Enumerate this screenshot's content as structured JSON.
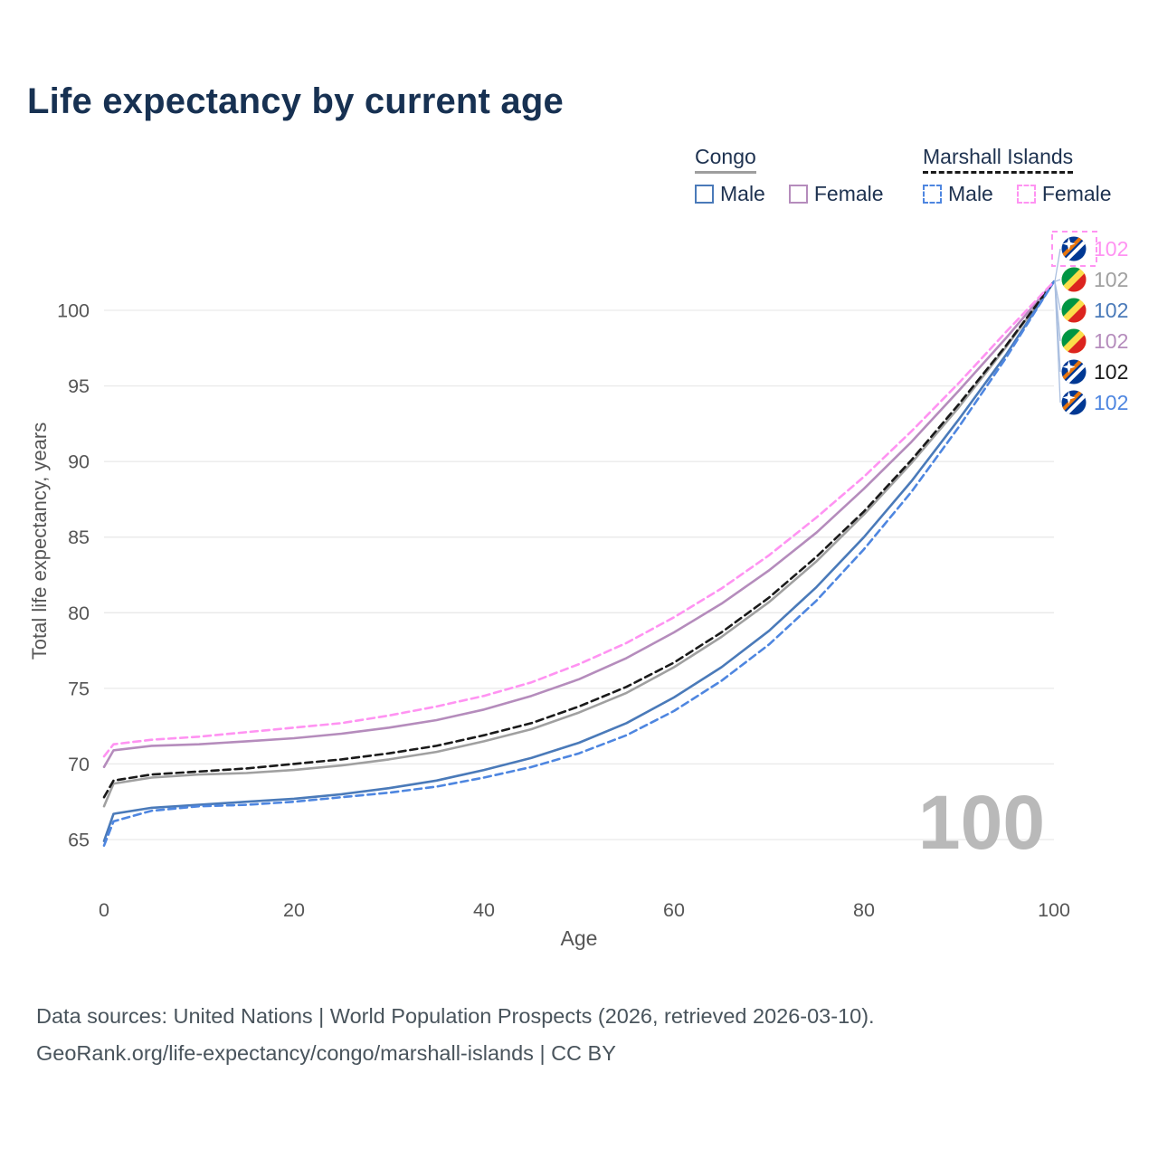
{
  "title": "Life expectancy by current age",
  "legend": {
    "groups": [
      {
        "name": "Congo",
        "underline": {
          "color": "#9e9e9e",
          "style": "solid"
        },
        "items": [
          {
            "label": "Male",
            "color": "#4a7ab9",
            "dash": false
          },
          {
            "label": "Female",
            "color": "#b58cbc",
            "dash": false
          }
        ]
      },
      {
        "name": "Marshall Islands",
        "underline": {
          "color": "#1a1a1a",
          "style": "dashed"
        },
        "items": [
          {
            "label": "Male",
            "color": "#4e86e0",
            "dash": true
          },
          {
            "label": "Female",
            "color": "#ff93f2",
            "dash": true
          }
        ]
      }
    ]
  },
  "chart_data": {
    "type": "line",
    "title": "Life expectancy by current age",
    "xlabel": "Age",
    "ylabel": "Total life expectancy, years",
    "xlim": [
      0,
      100
    ],
    "ylim": [
      63,
      103
    ],
    "xticks": [
      0,
      20,
      40,
      60,
      80,
      100
    ],
    "yticks": [
      65,
      70,
      75,
      80,
      85,
      90,
      95,
      100
    ],
    "grid": "horizontal-only",
    "legend_position": "top-right",
    "watermark_current_age": "100",
    "x": [
      0,
      1,
      5,
      10,
      15,
      20,
      25,
      30,
      35,
      40,
      45,
      50,
      55,
      60,
      65,
      70,
      75,
      80,
      85,
      90,
      95,
      100
    ],
    "series": [
      {
        "name": "Congo Both sexes",
        "country": "Congo",
        "sex": "both",
        "color": "#a0a0a0",
        "dash": false,
        "values": [
          67.2,
          68.7,
          69.1,
          69.3,
          69.4,
          69.6,
          69.9,
          70.3,
          70.8,
          71.5,
          72.3,
          73.4,
          74.7,
          76.4,
          78.4,
          80.7,
          83.4,
          86.5,
          89.9,
          93.6,
          97.6,
          101.9
        ]
      },
      {
        "name": "Congo Male",
        "country": "Congo",
        "sex": "male",
        "color": "#4a7ab9",
        "dash": false,
        "values": [
          64.9,
          66.7,
          67.1,
          67.3,
          67.5,
          67.7,
          68.0,
          68.4,
          68.9,
          69.6,
          70.4,
          71.4,
          72.7,
          74.4,
          76.4,
          78.8,
          81.7,
          85.0,
          88.7,
          92.8,
          97.1,
          101.9
        ]
      },
      {
        "name": "Congo Female",
        "country": "Congo",
        "sex": "female",
        "color": "#b58cbc",
        "dash": false,
        "values": [
          69.8,
          70.9,
          71.2,
          71.3,
          71.5,
          71.7,
          72.0,
          72.4,
          72.9,
          73.6,
          74.5,
          75.6,
          77.0,
          78.7,
          80.6,
          82.8,
          85.3,
          88.2,
          91.3,
          94.7,
          98.2,
          101.9
        ]
      },
      {
        "name": "Marshall Islands Both sexes",
        "country": "Marshall Islands",
        "sex": "both",
        "color": "#1a1a1a",
        "dash": true,
        "values": [
          67.8,
          68.9,
          69.3,
          69.5,
          69.7,
          70.0,
          70.3,
          70.7,
          71.2,
          71.9,
          72.7,
          73.8,
          75.1,
          76.7,
          78.7,
          81.0,
          83.7,
          86.7,
          90.1,
          93.8,
          97.7,
          101.9
        ]
      },
      {
        "name": "Marshall Islands Male",
        "country": "Marshall Islands",
        "sex": "male",
        "color": "#4e86e0",
        "dash": true,
        "values": [
          64.6,
          66.2,
          66.9,
          67.2,
          67.3,
          67.5,
          67.8,
          68.1,
          68.5,
          69.1,
          69.8,
          70.7,
          71.9,
          73.5,
          75.5,
          77.9,
          80.8,
          84.2,
          88.0,
          92.3,
          96.9,
          101.9
        ]
      },
      {
        "name": "Marshall Islands Female",
        "country": "Marshall Islands",
        "sex": "female",
        "color": "#ff93f2",
        "dash": true,
        "values": [
          70.5,
          71.3,
          71.6,
          71.8,
          72.1,
          72.4,
          72.7,
          73.2,
          73.8,
          74.5,
          75.4,
          76.6,
          78.0,
          79.7,
          81.6,
          83.8,
          86.3,
          89.0,
          92.0,
          95.2,
          98.6,
          101.9
        ]
      }
    ],
    "end_labels": [
      {
        "flag": "marshall-islands",
        "value": "102",
        "color": "#ff93f2"
      },
      {
        "flag": "congo",
        "value": "102",
        "color": "#a0a0a0"
      },
      {
        "flag": "congo",
        "value": "102",
        "color": "#4a7ab9"
      },
      {
        "flag": "congo",
        "value": "102",
        "color": "#b58cbc"
      },
      {
        "flag": "marshall-islands",
        "value": "102",
        "color": "#1a1a1a"
      },
      {
        "flag": "marshall-islands",
        "value": "102",
        "color": "#4e86e0"
      }
    ]
  },
  "footer": {
    "line1": "Data sources: United Nations | World Population Prospects (2026, retrieved 2026-03-10).",
    "line2": "GeoRank.org/life-expectancy/congo/marshall-islands | CC BY"
  }
}
